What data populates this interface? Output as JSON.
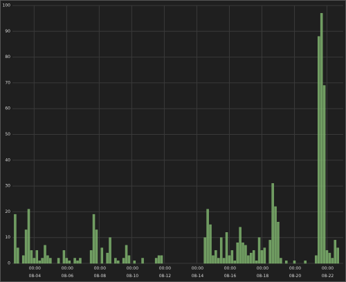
{
  "chart_data": {
    "type": "bar",
    "x": [
      "08-02 20:00",
      "08-03 00:00",
      "08-03 08:00",
      "08-03 12:00",
      "08-03 16:00",
      "08-03 20:00",
      "08-04 00:00",
      "08-04 04:00",
      "08-04 08:00",
      "08-04 12:00",
      "08-04 16:00",
      "08-04 20:00",
      "08-05 00:00",
      "08-05 12:00",
      "08-05 20:00",
      "08-06 00:00",
      "08-06 04:00",
      "08-06 12:00",
      "08-06 16:00",
      "08-06 20:00",
      "08-07 12:00",
      "08-07 16:00",
      "08-07 20:00",
      "08-08 04:00",
      "08-08 12:00",
      "08-08 16:00",
      "08-09 00:00",
      "08-09 04:00",
      "08-09 12:00",
      "08-09 16:00",
      "08-09 20:00",
      "08-10 04:00",
      "08-10 16:00",
      "08-11 12:00",
      "08-11 16:00",
      "08-11 20:00",
      "08-14 12:00",
      "08-14 16:00",
      "08-14 20:00",
      "08-15 00:00",
      "08-15 04:00",
      "08-15 08:00",
      "08-15 12:00",
      "08-15 16:00",
      "08-15 20:00",
      "08-16 00:00",
      "08-16 04:00",
      "08-16 08:00",
      "08-16 12:00",
      "08-16 16:00",
      "08-16 20:00",
      "08-17 00:00",
      "08-17 04:00",
      "08-17 08:00",
      "08-17 12:00",
      "08-17 16:00",
      "08-17 20:00",
      "08-18 00:00",
      "08-18 04:00",
      "08-18 12:00",
      "08-18 16:00",
      "08-18 20:00",
      "08-19 00:00",
      "08-19 04:00",
      "08-19 12:00",
      "08-20 00:00",
      "08-20 16:00",
      "08-21 08:00",
      "08-21 12:00",
      "08-21 16:00",
      "08-21 20:00",
      "08-22 00:00",
      "08-22 04:00",
      "08-22 08:00",
      "08-22 12:00",
      "08-22 16:00"
    ],
    "values": [
      19,
      6,
      3,
      13,
      21,
      5,
      2,
      5,
      1,
      2,
      7,
      3,
      2,
      2,
      5,
      2,
      1,
      2,
      1,
      2,
      5,
      19,
      13,
      6,
      4,
      10,
      2,
      1,
      2,
      7,
      3,
      1,
      2,
      2,
      3,
      3,
      10,
      21,
      15,
      3,
      5,
      2,
      10,
      2,
      12,
      3,
      5,
      1,
      8,
      14,
      8,
      7,
      3,
      4,
      5,
      1,
      10,
      5,
      6,
      9,
      31,
      22,
      16,
      2,
      1,
      1,
      1,
      3,
      88,
      97,
      69,
      5,
      4,
      2,
      9,
      6
    ],
    "color": "#7eb26d",
    "xlim": [
      "08-02 16:00",
      "08-23 00:00"
    ],
    "xticks": [
      {
        "value": "08-04 00:00",
        "label": "00:00\n08-04"
      },
      {
        "value": "08-06 00:00",
        "label": "00:00\n08-06"
      },
      {
        "value": "08-08 00:00",
        "label": "00:00\n08-08"
      },
      {
        "value": "08-10 00:00",
        "label": "00:00\n08-10"
      },
      {
        "value": "08-12 00:00",
        "label": "00:00\n08-12"
      },
      {
        "value": "08-14 00:00",
        "label": "00:00\n08-14"
      },
      {
        "value": "08-16 00:00",
        "label": "00:00\n08-16"
      },
      {
        "value": "08-18 00:00",
        "label": "00:00\n08-18"
      },
      {
        "value": "08-20 00:00",
        "label": "00:00\n08-20"
      },
      {
        "value": "08-22 00:00",
        "label": "00:00\n08-22"
      }
    ],
    "ylim": [
      0,
      100
    ],
    "yticks": [
      0,
      10,
      20,
      30,
      40,
      50,
      60,
      70,
      80,
      90,
      100
    ],
    "grid": true
  }
}
